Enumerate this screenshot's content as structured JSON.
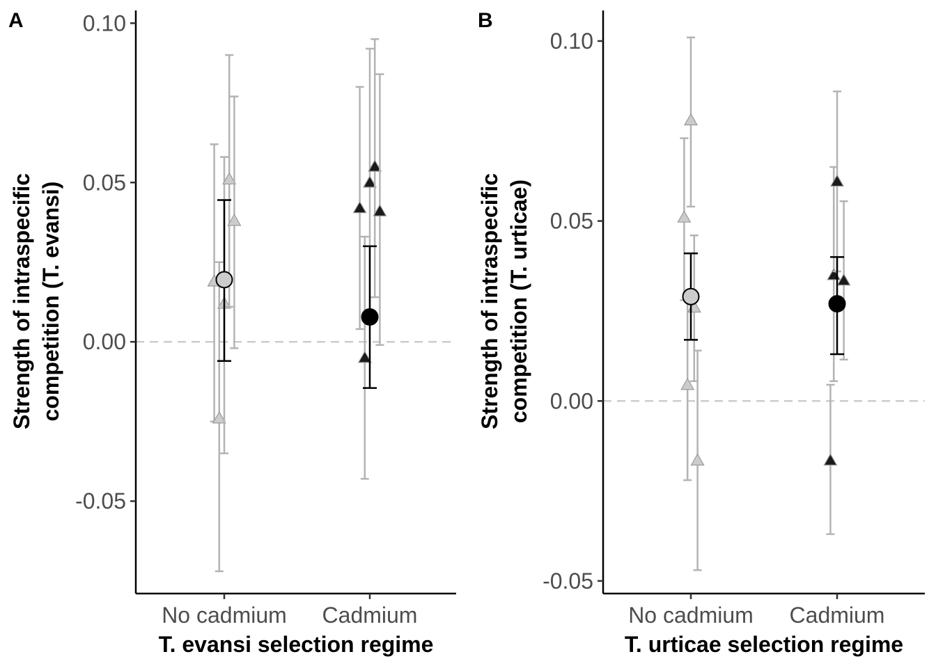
{
  "chart_data": [
    {
      "type": "scatter",
      "panel_label": "A",
      "xlabel": "T. evansi selection regime",
      "ylabel": [
        "Strength of intraspecific",
        "competition (T. evansi)"
      ],
      "categories": [
        "No cadmium",
        "Cadmium"
      ],
      "yticks": [
        -0.05,
        0.0,
        0.05,
        0.1
      ],
      "ytick_labels": [
        "-0.05",
        "0.00",
        "0.05",
        "0.10"
      ],
      "ylim": [
        -0.079,
        0.104
      ],
      "reference_line": 0,
      "grid": false,
      "colors": {
        "no_cadmium": "#cccccc",
        "cadmium": "#000000",
        "replicate_bar": "#b3b3b3",
        "reference_line": "#cccccc"
      },
      "replicates": [
        {
          "category": "No cadmium",
          "offset": -0.18,
          "y": 0.019,
          "lo": -0.025,
          "hi": 0.062
        },
        {
          "category": "No cadmium",
          "offset": -0.09,
          "y": -0.024,
          "lo": -0.072,
          "hi": 0.025
        },
        {
          "category": "No cadmium",
          "offset": 0.0,
          "y": 0.012,
          "lo": -0.035,
          "hi": 0.058
        },
        {
          "category": "No cadmium",
          "offset": 0.09,
          "y": 0.051,
          "lo": 0.011,
          "hi": 0.09
        },
        {
          "category": "No cadmium",
          "offset": 0.18,
          "y": 0.038,
          "lo": -0.002,
          "hi": 0.077
        },
        {
          "category": "Cadmium",
          "offset": -0.18,
          "y": 0.042,
          "lo": 0.004,
          "hi": 0.08
        },
        {
          "category": "Cadmium",
          "offset": -0.09,
          "y": -0.005,
          "lo": -0.043,
          "hi": 0.033
        },
        {
          "category": "Cadmium",
          "offset": 0.0,
          "y": 0.05,
          "lo": 0.008,
          "hi": 0.092
        },
        {
          "category": "Cadmium",
          "offset": 0.09,
          "y": 0.055,
          "lo": 0.014,
          "hi": 0.095
        },
        {
          "category": "Cadmium",
          "offset": 0.18,
          "y": 0.041,
          "lo": -0.001,
          "hi": 0.084
        }
      ],
      "means": [
        {
          "category": "No cadmium",
          "y": 0.0195,
          "lo": -0.006,
          "hi": 0.0445
        },
        {
          "category": "Cadmium",
          "y": 0.0078,
          "lo": -0.0145,
          "hi": 0.03
        }
      ]
    },
    {
      "type": "scatter",
      "panel_label": "B",
      "xlabel": "T. urticae selection regime",
      "ylabel": [
        "Strength of intraspecific",
        "competition (T. urticae)"
      ],
      "categories": [
        "No cadmium",
        "Cadmium"
      ],
      "yticks": [
        -0.05,
        0.0,
        0.05,
        0.1
      ],
      "ytick_labels": [
        "-0.05",
        "0.00",
        "0.05",
        "0.10"
      ],
      "ylim": [
        -0.0535,
        0.1085
      ],
      "reference_line": 0,
      "grid": false,
      "colors": {
        "no_cadmium": "#cccccc",
        "cadmium": "#000000",
        "replicate_bar": "#b3b3b3",
        "reference_line": "#cccccc"
      },
      "replicates": [
        {
          "category": "No cadmium",
          "offset": -0.12,
          "y": 0.051,
          "lo": 0.028,
          "hi": 0.073
        },
        {
          "category": "No cadmium",
          "offset": -0.06,
          "y": 0.0045,
          "lo": -0.022,
          "hi": 0.03
        },
        {
          "category": "No cadmium",
          "offset": 0.0,
          "y": 0.078,
          "lo": 0.054,
          "hi": 0.101
        },
        {
          "category": "No cadmium",
          "offset": 0.06,
          "y": 0.026,
          "lo": 0.0055,
          "hi": 0.046
        },
        {
          "category": "No cadmium",
          "offset": 0.12,
          "y": -0.0165,
          "lo": -0.047,
          "hi": 0.014
        },
        {
          "category": "Cadmium",
          "offset": -0.12,
          "y": -0.0165,
          "lo": -0.037,
          "hi": 0.0045
        },
        {
          "category": "Cadmium",
          "offset": -0.06,
          "y": 0.035,
          "lo": 0.0055,
          "hi": 0.065
        },
        {
          "category": "Cadmium",
          "offset": 0.0,
          "y": 0.061,
          "lo": 0.036,
          "hi": 0.086
        },
        {
          "category": "Cadmium",
          "offset": 0.12,
          "y": 0.0335,
          "lo": 0.0115,
          "hi": 0.0555
        }
      ],
      "means": [
        {
          "category": "No cadmium",
          "y": 0.029,
          "lo": 0.017,
          "hi": 0.041
        },
        {
          "category": "Cadmium",
          "y": 0.027,
          "lo": 0.013,
          "hi": 0.04
        }
      ]
    }
  ]
}
